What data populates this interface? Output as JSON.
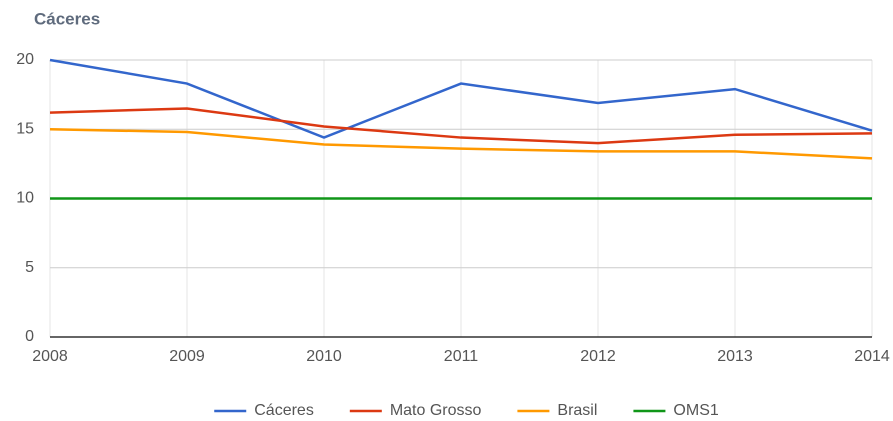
{
  "chart_data": {
    "type": "line",
    "title": "Cáceres",
    "x": [
      2008,
      2009,
      2010,
      2011,
      2012,
      2013,
      2014
    ],
    "xlim": [
      2008,
      2014
    ],
    "xticks": [
      2008,
      2009,
      2010,
      2011,
      2012,
      2013,
      2014
    ],
    "ylim": [
      0,
      20
    ],
    "yticks": [
      0,
      5,
      10,
      15,
      20
    ],
    "grid": true,
    "legend": "bottom",
    "series": [
      {
        "name": "Cáceres",
        "color": "#3366cc",
        "values": [
          20,
          18.3,
          14.4,
          18.3,
          16.9,
          17.9,
          14.9
        ]
      },
      {
        "name": "Mato Grosso",
        "color": "#dc3912",
        "values": [
          16.2,
          16.5,
          15.2,
          14.4,
          14.0,
          14.6,
          14.7
        ]
      },
      {
        "name": "Brasil",
        "color": "#ff9900",
        "values": [
          15.0,
          14.8,
          13.9,
          13.6,
          13.4,
          13.4,
          12.9
        ]
      },
      {
        "name": "OMS1",
        "color": "#109618",
        "values": [
          10,
          10,
          10,
          10,
          10,
          10,
          10
        ]
      }
    ]
  }
}
